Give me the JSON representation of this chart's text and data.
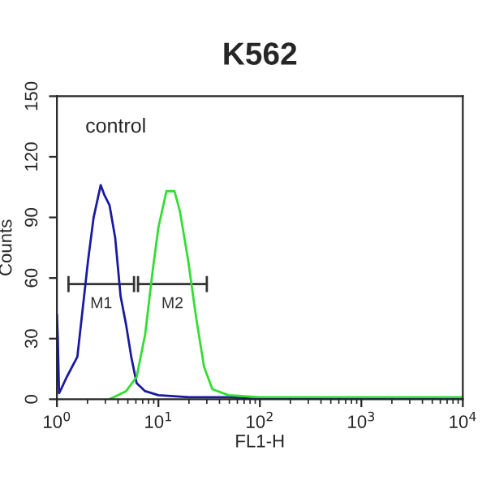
{
  "chart_data": {
    "type": "line",
    "title": "K562",
    "xlabel": "FL1-H",
    "ylabel": "Counts",
    "log": "x",
    "xlim": [
      1,
      10000
    ],
    "xticks": [
      {
        "value": 1,
        "label": "10$^{0}$"
      },
      {
        "value": 10,
        "label": "10$^{1}$"
      },
      {
        "value": 100,
        "label": "10$^{2}$"
      },
      {
        "value": 1000,
        "label": "10$^{3}$"
      },
      {
        "value": 10000,
        "label": "10$^{4}$"
      }
    ],
    "ylim": [
      0,
      150
    ],
    "yticks": [
      0,
      30,
      60,
      90,
      120,
      150
    ],
    "grid": false,
    "annotations": [
      "control"
    ],
    "series": [
      {
        "name": "M1",
        "color": "#333333",
        "x": [
          1.3,
          5.75
        ],
        "values": [
          57,
          57
        ],
        "errors": [
          4,
          4
        ]
      },
      {
        "name": "M2",
        "color": "#333333",
        "x": [
          6.3,
          30
        ],
        "values": [
          57,
          57
        ],
        "errors": [
          4,
          4
        ]
      },
      {
        "color": "#1a1aa0",
        "x": [
          1,
          1.02,
          1.05,
          1.1,
          1.25,
          1.59,
          2.03,
          2.3,
          2.7,
          2.94,
          3.3,
          3.75,
          4.24,
          4.8,
          5.4,
          6.1,
          7.4,
          10,
          20,
          50,
          100,
          10000
        ],
        "values": [
          42,
          30,
          3,
          5,
          11,
          21,
          69,
          90,
          106,
          101,
          96,
          80,
          51,
          37,
          21,
          8,
          4,
          2,
          1,
          1,
          0,
          0
        ]
      },
      {
        "color": "#33dd33",
        "x": [
          3.3,
          4.8,
          6.1,
          7.4,
          8.8,
          10,
          12,
          14.4,
          16.3,
          19.6,
          23.6,
          28.2,
          34,
          49,
          100,
          1000,
          10000
        ],
        "values": [
          0,
          4,
          11,
          32,
          64,
          85,
          103,
          103,
          93,
          69,
          40,
          16,
          5,
          2,
          1,
          1,
          1
        ]
      }
    ]
  }
}
